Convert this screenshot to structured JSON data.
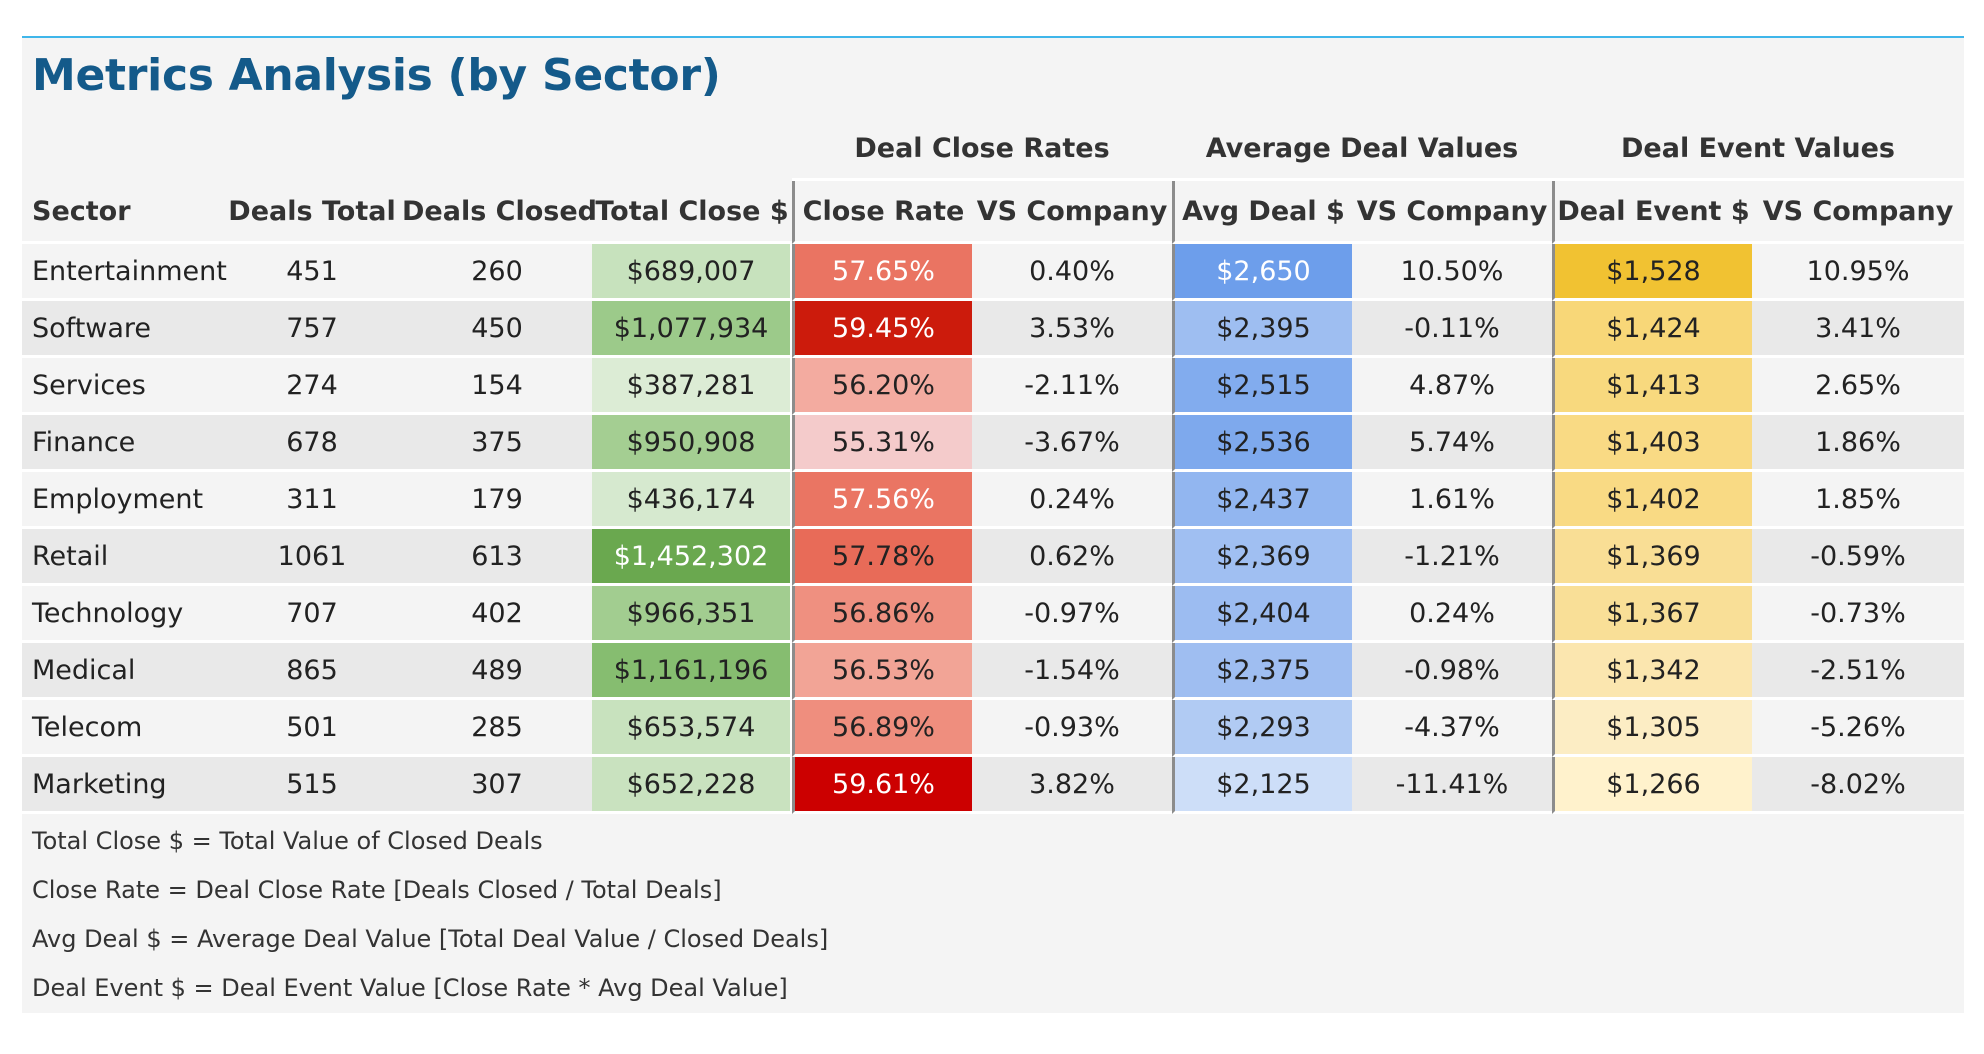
{
  "title": "Metrics Analysis (by Sector)",
  "group_headers": {
    "close_rates": "Deal Close Rates",
    "avg_values": "Average Deal Values",
    "event_values": "Deal Event Values"
  },
  "columns": {
    "sector": "Sector",
    "deals_total": "Deals Total",
    "deals_closed": "Deals Closed",
    "total_close": "Total Close $",
    "close_rate": "Close Rate",
    "vs_company_1": "VS Company",
    "avg_deal": "Avg Deal $",
    "vs_company_2": "VS Company",
    "deal_event": "Deal Event $",
    "vs_company_3": "VS Company"
  },
  "rows": [
    {
      "sector": "Entertainment",
      "deals_total": "451",
      "deals_closed": "260",
      "total_close": "$689,007",
      "close_rate": "57.65%",
      "vs1": "0.40%",
      "avg_deal": "$2,650",
      "vs2": "10.50%",
      "deal_event": "$1,528",
      "vs3": "10.95%"
    },
    {
      "sector": "Software",
      "deals_total": "757",
      "deals_closed": "450",
      "total_close": "$1,077,934",
      "close_rate": "59.45%",
      "vs1": "3.53%",
      "avg_deal": "$2,395",
      "vs2": "-0.11%",
      "deal_event": "$1,424",
      "vs3": "3.41%"
    },
    {
      "sector": "Services",
      "deals_total": "274",
      "deals_closed": "154",
      "total_close": "$387,281",
      "close_rate": "56.20%",
      "vs1": "-2.11%",
      "avg_deal": "$2,515",
      "vs2": "4.87%",
      "deal_event": "$1,413",
      "vs3": "2.65%"
    },
    {
      "sector": "Finance",
      "deals_total": "678",
      "deals_closed": "375",
      "total_close": "$950,908",
      "close_rate": "55.31%",
      "vs1": "-3.67%",
      "avg_deal": "$2,536",
      "vs2": "5.74%",
      "deal_event": "$1,403",
      "vs3": "1.86%"
    },
    {
      "sector": "Employment",
      "deals_total": "311",
      "deals_closed": "179",
      "total_close": "$436,174",
      "close_rate": "57.56%",
      "vs1": "0.24%",
      "avg_deal": "$2,437",
      "vs2": "1.61%",
      "deal_event": "$1,402",
      "vs3": "1.85%"
    },
    {
      "sector": "Retail",
      "deals_total": "1061",
      "deals_closed": "613",
      "total_close": "$1,452,302",
      "close_rate": "57.78%",
      "vs1": "0.62%",
      "avg_deal": "$2,369",
      "vs2": "-1.21%",
      "deal_event": "$1,369",
      "vs3": "-0.59%"
    },
    {
      "sector": "Technology",
      "deals_total": "707",
      "deals_closed": "402",
      "total_close": "$966,351",
      "close_rate": "56.86%",
      "vs1": "-0.97%",
      "avg_deal": "$2,404",
      "vs2": "0.24%",
      "deal_event": "$1,367",
      "vs3": "-0.73%"
    },
    {
      "sector": "Medical",
      "deals_total": "865",
      "deals_closed": "489",
      "total_close": "$1,161,196",
      "close_rate": "56.53%",
      "vs1": "-1.54%",
      "avg_deal": "$2,375",
      "vs2": "-0.98%",
      "deal_event": "$1,342",
      "vs3": "-2.51%"
    },
    {
      "sector": "Telecom",
      "deals_total": "501",
      "deals_closed": "285",
      "total_close": "$653,574",
      "close_rate": "56.89%",
      "vs1": "-0.93%",
      "avg_deal": "$2,293",
      "vs2": "-4.37%",
      "deal_event": "$1,305",
      "vs3": "-5.26%"
    },
    {
      "sector": "Marketing",
      "deals_total": "515",
      "deals_closed": "307",
      "total_close": "$652,228",
      "close_rate": "59.61%",
      "vs1": "3.82%",
      "avg_deal": "$2,125",
      "vs2": "-11.41%",
      "deal_event": "$1,266",
      "vs3": "-8.02%"
    }
  ],
  "heatmap_colors": {
    "total_close": [
      "#c7e2bd",
      "#9cca8a",
      "#dcecd5",
      "#a4ce92",
      "#d6e9cf",
      "#6aa84f",
      "#a2cd90",
      "#86bd70",
      "#c8e2be",
      "#c9e2bf"
    ],
    "close_rate": [
      "#ea7462",
      "#cc1b0c",
      "#f3aba0",
      "#f4cbcb",
      "#ea7563",
      "#e86b58",
      "#ef9080",
      "#f2a496",
      "#ef8e7e",
      "#cc0000"
    ],
    "avg_deal": [
      "#6d9eeb",
      "#9ebef1",
      "#82acee",
      "#7ea9ed",
      "#92b6f0",
      "#a0bff2",
      "#9cbcf1",
      "#9fbef1",
      "#b1cbf3",
      "#cddef8"
    ],
    "deal_event": [
      "#f1c232",
      "#f8d778",
      "#f8d97e",
      "#f9da84",
      "#f9da84",
      "#f9de95",
      "#f9df97",
      "#fbe6af",
      "#fcedc4",
      "#fff2cc"
    ]
  },
  "heatmap_text_colors": {
    "close_rate": [
      "#ffffff",
      "#ffffff",
      "#222222",
      "#222222",
      "#ffffff",
      "#222222",
      "#222222",
      "#222222",
      "#222222",
      "#ffffff"
    ],
    "avg_deal": [
      "#ffffff",
      "#222222",
      "#222222",
      "#222222",
      "#222222",
      "#222222",
      "#222222",
      "#222222",
      "#222222",
      "#222222"
    ],
    "total_close": [
      "#222222",
      "#222222",
      "#222222",
      "#222222",
      "#222222",
      "#ffffff",
      "#222222",
      "#222222",
      "#222222",
      "#222222"
    ],
    "deal_event": [
      "#222222",
      "#222222",
      "#222222",
      "#222222",
      "#222222",
      "#222222",
      "#222222",
      "#222222",
      "#222222",
      "#222222"
    ]
  },
  "notes": [
    "Total Close $ = Total Value of Closed Deals",
    "Close Rate = Deal Close Rate [Deals Closed / Total Deals]",
    "Avg Deal $ = Average Deal Value [Total Deal Value / Closed Deals]",
    "Deal Event $ = Deal Event Value [Close Rate * Avg Deal Value]"
  ]
}
